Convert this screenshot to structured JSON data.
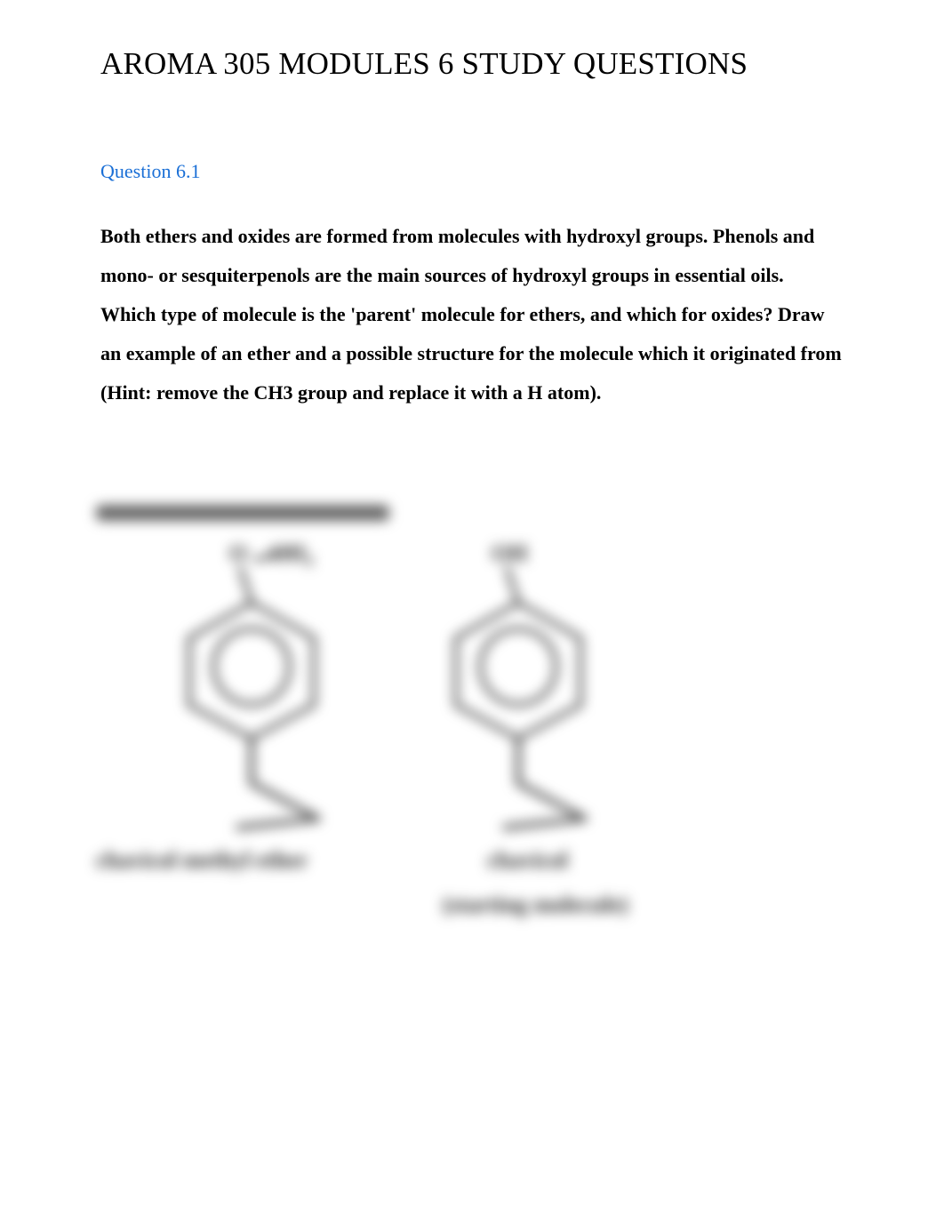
{
  "title": "AROMA 305 MODULES 6 STUDY QUESTIONS",
  "question": {
    "label": "Question 6.1",
    "body": "Both ethers and oxides are formed from molecules with hydroxyl groups. Phenols and mono- or sesquiterpenols are the main sources of hydroxyl groups in essential oils. Which type of molecule is the 'parent' molecule for ethers, and which for oxides? Draw an example of an ether and a possible structure for the molecule which it originated from (Hint: remove the CH3 group and replace it with a H atom)."
  },
  "diagram": {
    "stroke_color": "#4a4a4a",
    "stroke_width": 5,
    "left": {
      "top_group_html": "O&nbsp;&nbsp;&nbsp;&nbsp;CH<span class='sub'>3</span>",
      "caption": "chavicol methyl ether"
    },
    "right": {
      "top_group": "OH",
      "caption_line1": "chavicol",
      "caption_line2": "(starting molecule)"
    },
    "colors": {
      "text": "#2a2a2a",
      "label_blue": "#1a6fd6",
      "background": "#ffffff"
    }
  }
}
